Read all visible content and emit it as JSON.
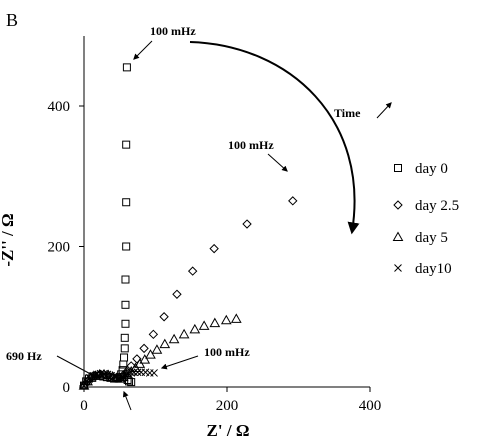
{
  "chart_data": {
    "type": "scatter",
    "panel_label": "B",
    "xlabel": "Z' / Ω",
    "ylabel": "-Z'' / Ω",
    "xlim": [
      0,
      400
    ],
    "ylim": [
      0,
      500
    ],
    "xticks": [
      0,
      200,
      400
    ],
    "yticks": [
      0,
      200,
      400
    ],
    "grid": false,
    "legend_position": "right",
    "series": [
      {
        "name": "day 0",
        "marker": "square",
        "x": [
          0,
          3,
          7,
          12,
          17,
          22,
          27,
          32,
          37,
          42,
          47,
          50,
          52,
          54,
          55,
          56,
          57,
          57,
          58,
          58,
          58,
          59,
          59,
          59,
          60,
          61,
          63,
          66
        ],
        "y": [
          2,
          8,
          12,
          15,
          16,
          16,
          15,
          14,
          13,
          12,
          12,
          14,
          18,
          24,
          32,
          42,
          55,
          70,
          90,
          117,
          153,
          200,
          263,
          345,
          455,
          10,
          8,
          7
        ]
      },
      {
        "name": "day 2.5",
        "marker": "diamond",
        "x": [
          0,
          5,
          10,
          16,
          22,
          28,
          34,
          40,
          45,
          50,
          55,
          60,
          66,
          74,
          84,
          97,
          112,
          130,
          152,
          182,
          228,
          292
        ],
        "y": [
          2,
          8,
          13,
          16,
          18,
          18,
          17,
          15,
          13,
          14,
          17,
          22,
          30,
          40,
          55,
          75,
          100,
          132,
          165,
          197,
          232,
          265
        ]
      },
      {
        "name": "day 5",
        "marker": "triangle",
        "x": [
          0,
          5,
          10,
          16,
          22,
          28,
          34,
          40,
          46,
          51,
          55,
          60,
          66,
          72,
          78,
          85,
          93,
          102,
          113,
          126,
          140,
          155,
          168,
          183,
          199,
          213
        ],
        "y": [
          2,
          8,
          13,
          16,
          18,
          18,
          17,
          15,
          13,
          12,
          14,
          18,
          22,
          27,
          33,
          39,
          46,
          53,
          61,
          68,
          75,
          82,
          87,
          91,
          95,
          97
        ]
      },
      {
        "name": "day10",
        "marker": "x",
        "x": [
          0,
          4,
          8,
          13,
          18,
          23,
          28,
          33,
          38,
          43,
          48,
          52,
          55,
          58,
          62,
          66,
          70,
          75,
          80,
          86,
          92,
          98
        ],
        "y": [
          2,
          8,
          13,
          16,
          18,
          19,
          19,
          18,
          16,
          14,
          12,
          12,
          14,
          17,
          19,
          20,
          21,
          21,
          21,
          21,
          20,
          20
        ]
      }
    ],
    "annotations": [
      {
        "text": "100 mHz",
        "points_to": "day 0"
      },
      {
        "text": "100 mHz",
        "points_to": "day 2.5"
      },
      {
        "text": "100 mHz",
        "points_to": "day 5"
      },
      {
        "text": "690 Hz",
        "points_to": "high-frequency arc"
      },
      {
        "text": "Time",
        "note": "arrow indicating increasing time"
      }
    ]
  }
}
